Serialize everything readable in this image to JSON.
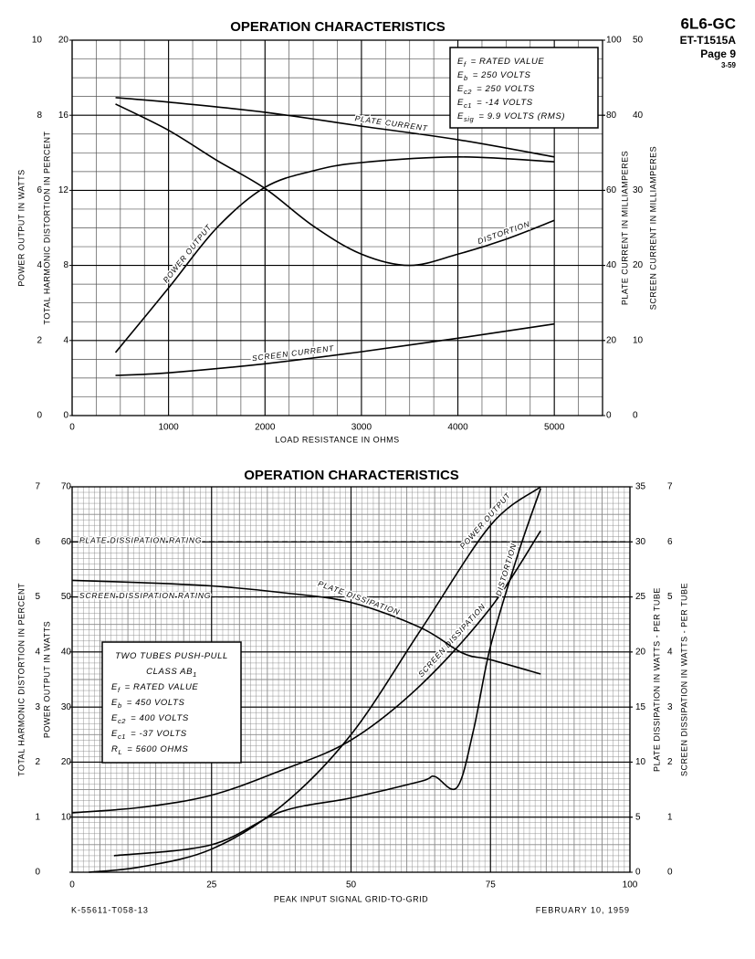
{
  "header": {
    "tube": "6L6-GC",
    "code": "ET-T1515A",
    "page": "Page 9",
    "date": "3-59"
  },
  "chart_data": [
    {
      "type": "line",
      "title": "OPERATION CHARACTERISTICS",
      "x_label": "LOAD RESISTANCE IN OHMS",
      "xlim": [
        0,
        5500
      ],
      "xticks": [
        0,
        1000,
        2000,
        3000,
        4000,
        5000
      ],
      "y_axes": [
        {
          "label": "POWER OUTPUT IN WATTS",
          "ylim": [
            0,
            10
          ],
          "yticks": [
            0,
            2,
            4,
            6,
            8,
            10
          ]
        },
        {
          "label": "TOTAL HARMONIC DISTORTION IN PERCENT",
          "ylim": [
            0,
            20
          ],
          "yticks": [
            0,
            4,
            8,
            12,
            16,
            20
          ]
        },
        {
          "label": "PLATE CURRENT IN MILLIAMPERES",
          "ylim": [
            0,
            100
          ],
          "yticks": [
            0,
            20,
            40,
            60,
            80,
            100
          ]
        },
        {
          "label": "SCREEN CURRENT IN MILLIAMPERES",
          "ylim": [
            0,
            50
          ],
          "yticks": [
            0,
            10,
            20,
            30,
            40,
            50
          ]
        }
      ],
      "grid": {
        "y_axis": 1,
        "x_subdivisions": 4,
        "y_subdivisions": 4
      },
      "series": [
        {
          "name": "PLATE CURRENT",
          "axis": 2,
          "color": "#000000",
          "x": [
            450,
            1000,
            2000,
            3000,
            4000,
            5000
          ],
          "values": [
            84.7,
            83.5,
            80.8,
            77.1,
            73.5,
            68.9
          ]
        },
        {
          "name": "POWER OUTPUT",
          "axis": 0,
          "color": "#000000",
          "x": [
            450,
            1000,
            1500,
            2000,
            2500,
            3000,
            4000,
            5000
          ],
          "values": [
            1.68,
            3.4,
            5.0,
            6.08,
            6.52,
            6.74,
            6.89,
            6.76
          ]
        },
        {
          "name": "DISTORTION",
          "axis": 1,
          "color": "#000000",
          "x": [
            450,
            1000,
            1500,
            2000,
            2500,
            3000,
            3500,
            4000,
            4500,
            5000
          ],
          "values": [
            16.6,
            15.2,
            13.6,
            12.1,
            10.1,
            8.6,
            8.0,
            8.6,
            9.4,
            10.4
          ]
        },
        {
          "name": "SCREEN CURRENT",
          "axis": 3,
          "color": "#000000",
          "x": [
            450,
            1000,
            2000,
            3000,
            4000,
            5000
          ],
          "values": [
            5.35,
            5.7,
            6.9,
            8.5,
            10.3,
            12.2
          ]
        }
      ],
      "conditions": [
        [
          {
            "text": "E"
          },
          {
            "text": "f",
            "sub": true
          },
          {
            "text": "= RATED VALUE"
          }
        ],
        [
          {
            "text": "E"
          },
          {
            "text": "b",
            "sub": true
          },
          {
            "text": "= 250 VOLTS"
          }
        ],
        [
          {
            "text": "E"
          },
          {
            "text": "c2",
            "sub": true
          },
          {
            "text": "= 250 VOLTS"
          }
        ],
        [
          {
            "text": "E"
          },
          {
            "text": "c1",
            "sub": true
          },
          {
            "text": "= -14 VOLTS"
          }
        ],
        [
          {
            "text": "E"
          },
          {
            "text": "sig",
            "sub": true
          },
          {
            "text": "= 9.9 VOLTS (RMS)"
          }
        ]
      ]
    },
    {
      "type": "line",
      "title": "OPERATION CHARACTERISTICS",
      "x_label": "PEAK INPUT SIGNAL GRID-TO-GRID",
      "xlim": [
        0,
        100
      ],
      "xticks": [
        0,
        25,
        50,
        75,
        100
      ],
      "y_axes": [
        {
          "label": "TOTAL HARMONIC DISTORTION IN PERCENT",
          "ylim": [
            0,
            7
          ],
          "yticks": [
            0,
            1,
            2,
            3,
            4,
            5,
            6,
            7
          ]
        },
        {
          "label": "POWER OUTPUT IN WATTS",
          "ylim": [
            0,
            70
          ],
          "yticks": [
            10,
            20,
            30,
            40,
            50,
            60,
            70
          ]
        },
        {
          "label": "PLATE DISSIPATION IN WATTS - PER TUBE",
          "ylim": [
            0,
            35
          ],
          "yticks": [
            0,
            5,
            10,
            15,
            20,
            25,
            30,
            35
          ]
        },
        {
          "label": "SCREEN DISSIPATION IN WATTS - PER TUBE",
          "ylim": [
            0,
            7
          ],
          "yticks": [
            0,
            1,
            2,
            3,
            4,
            5,
            6,
            7
          ]
        }
      ],
      "grid": {
        "y_axis": 1,
        "x_subdivisions": 25,
        "y_subdivisions": 10
      },
      "reference_lines": [
        {
          "label": "PLATE DISSIPATION RATING",
          "axis": 2,
          "value": 30
        },
        {
          "label": "SCREEN DISSIPATION RATING",
          "axis": 3,
          "value": 5
        }
      ],
      "series": [
        {
          "name": "POWER OUTPUT",
          "axis": 1,
          "color": "#000000",
          "x": [
            3,
            12.5,
            25,
            37.5,
            50,
            62.5,
            75,
            84
          ],
          "values": [
            0,
            1,
            4.2,
            12,
            25,
            44,
            63,
            70
          ]
        },
        {
          "name": "SCREEN DISSIPATION",
          "axis": 3,
          "color": "#000000",
          "x": [
            0,
            12.5,
            25,
            37.5,
            50,
            62.5,
            75,
            84
          ],
          "values": [
            1.08,
            1.18,
            1.4,
            1.85,
            2.4,
            3.4,
            4.8,
            6.2
          ]
        },
        {
          "name": "DISTORTION",
          "axis": 0,
          "color": "#000000",
          "x": [
            7.5,
            25,
            37.5,
            50,
            62.5,
            65,
            69,
            72,
            75,
            80,
            84
          ],
          "values": [
            0.3,
            0.5,
            1.1,
            1.35,
            1.65,
            1.74,
            1.54,
            2.6,
            4.1,
            5.8,
            6.97
          ]
        },
        {
          "name": "PLATE DISSIPATION",
          "axis": 2,
          "color": "#000000",
          "x": [
            0,
            12.5,
            25,
            37.5,
            50,
            62.5,
            70,
            75,
            84
          ],
          "values": [
            26.5,
            26.3,
            26,
            25.4,
            24.5,
            22.2,
            19.9,
            19.3,
            18
          ]
        }
      ],
      "conditions": [
        [
          {
            "text": "TWO TUBES PUSH-PULL"
          }
        ],
        [
          {
            "text": "CLASS AB"
          },
          {
            "text": "1",
            "sub": true
          }
        ],
        [
          {
            "text": "E"
          },
          {
            "text": "f",
            "sub": true
          },
          {
            "text": "= RATED VALUE"
          }
        ],
        [
          {
            "text": "E"
          },
          {
            "text": "b",
            "sub": true
          },
          {
            "text": "= 450 VOLTS"
          }
        ],
        [
          {
            "text": "E"
          },
          {
            "text": "c2",
            "sub": true
          },
          {
            "text": "= 400 VOLTS"
          }
        ],
        [
          {
            "text": "E"
          },
          {
            "text": "c1",
            "sub": true
          },
          {
            "text": "= -37 VOLTS"
          }
        ],
        [
          {
            "text": "R"
          },
          {
            "text": "L",
            "sub": true
          },
          {
            "text": "= 5600 OHMS"
          }
        ]
      ]
    }
  ],
  "footer": {
    "drawing": "K-55611-T058-13",
    "date": "FEBRUARY 10, 1959"
  }
}
